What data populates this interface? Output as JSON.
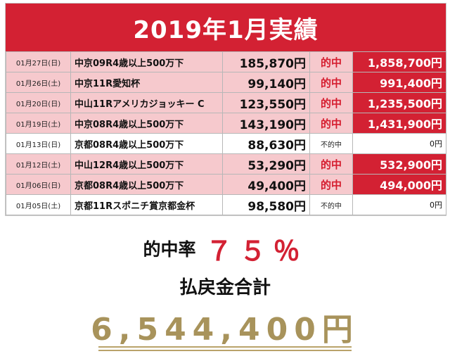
{
  "banner": {
    "title": "2019年1月実績"
  },
  "rows": [
    {
      "date": "01月27日(日)",
      "race": "中京09R4歳以上500万下",
      "bet": "185,870円",
      "result": "的中",
      "payout": "1,858,700円",
      "hit": true
    },
    {
      "date": "01月26日(土)",
      "race": "中京11R愛知杯",
      "bet": "99,140円",
      "result": "的中",
      "payout": "991,400円",
      "hit": true
    },
    {
      "date": "01月20日(日)",
      "race": "中山11Rアメリカジョッキー C",
      "bet": "123,550円",
      "result": "的中",
      "payout": "1,235,500円",
      "hit": true
    },
    {
      "date": "01月19日(土)",
      "race": "中京08R4歳以上500万下",
      "bet": "143,190円",
      "result": "的中",
      "payout": "1,431,900円",
      "hit": true
    },
    {
      "date": "01月13日(日)",
      "race": "京都08R4歳以上500万下",
      "bet": "88,630円",
      "result": "不的中",
      "payout": "0円",
      "hit": false
    },
    {
      "date": "01月12日(土)",
      "race": "中山12R4歳以上500万下",
      "bet": "53,290円",
      "result": "的中",
      "payout": "532,900円",
      "hit": true
    },
    {
      "date": "01月06日(日)",
      "race": "京都08R4歳以上500万下",
      "bet": "49,400円",
      "result": "的中",
      "payout": "494,000円",
      "hit": true
    },
    {
      "date": "01月05日(土)",
      "race": "京都11Rスポニチ賞京都金杯",
      "bet": "98,580円",
      "result": "不的中",
      "payout": "0円",
      "hit": false
    }
  ],
  "summary": {
    "rate_label": "的中率",
    "rate_value": "７５％",
    "total_label": "払戻金合計",
    "total_value": "6,544,400円"
  },
  "colors": {
    "accent_red": "#d32133",
    "hit_row": "#f6c9cd",
    "gold": "#a8935b"
  }
}
